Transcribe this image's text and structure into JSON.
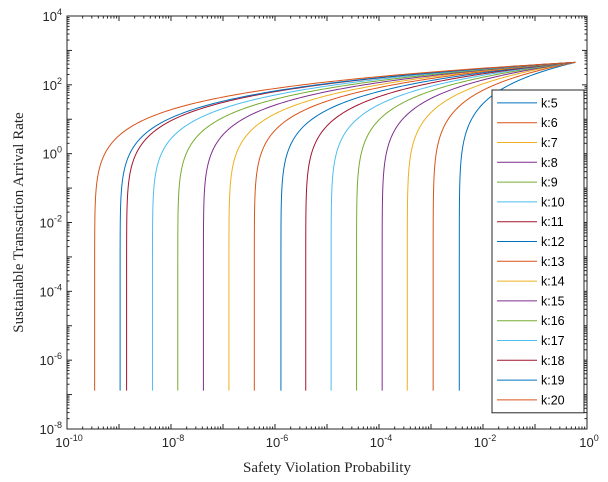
{
  "chart_data": {
    "type": "line",
    "title": "",
    "xlabel": "Safety Violation Probability",
    "ylabel": "Sustainable Transaction Arrival Rate",
    "xscale": "log",
    "yscale": "log",
    "xlim": [
      1e-10,
      1
    ],
    "ylim": [
      1e-08,
      10000
    ],
    "grid": false,
    "legend_placement": "right",
    "x_ticks": [
      {
        "base": "10",
        "exp": "-10",
        "value": 1e-10
      },
      {
        "base": "10",
        "exp": "-8",
        "value": 1e-08
      },
      {
        "base": "10",
        "exp": "-6",
        "value": 1e-06
      },
      {
        "base": "10",
        "exp": "-4",
        "value": 0.0001
      },
      {
        "base": "10",
        "exp": "-2",
        "value": 0.01
      },
      {
        "base": "10",
        "exp": "0",
        "value": 1
      }
    ],
    "y_ticks": [
      {
        "base": "10",
        "exp": "-8",
        "value": 1e-08
      },
      {
        "base": "10",
        "exp": "-6",
        "value": 1e-06
      },
      {
        "base": "10",
        "exp": "-4",
        "value": 0.0001
      },
      {
        "base": "10",
        "exp": "-2",
        "value": 0.01
      },
      {
        "base": "10",
        "exp": "0",
        "value": 1
      },
      {
        "base": "10",
        "exp": "2",
        "value": 100
      },
      {
        "base": "10",
        "exp": "4",
        "value": 10000
      }
    ],
    "curve_shape": {
      "y_min": 1.3e-07,
      "y_max": 450,
      "x_at_y_max": 0.6
    },
    "series": [
      {
        "name": "k:5",
        "color": "#0072BD",
        "x_vertical": 0.0035
      },
      {
        "name": "k:6",
        "color": "#D95319",
        "x_vertical": 0.0011
      },
      {
        "name": "k:7",
        "color": "#EDB120",
        "x_vertical": 0.00035
      },
      {
        "name": "k:8",
        "color": "#7E2F8E",
        "x_vertical": 0.000115
      },
      {
        "name": "k:9",
        "color": "#77AC30",
        "x_vertical": 3.7e-05
      },
      {
        "name": "k:10",
        "color": "#4DBEEE",
        "x_vertical": 1.2e-05
      },
      {
        "name": "k:11",
        "color": "#A2142F",
        "x_vertical": 3.9e-06
      },
      {
        "name": "k:12",
        "color": "#0072BD",
        "x_vertical": 1.3e-06
      },
      {
        "name": "k:13",
        "color": "#D95319",
        "x_vertical": 4e-07
      },
      {
        "name": "k:14",
        "color": "#EDB120",
        "x_vertical": 1.3e-07
      },
      {
        "name": "k:15",
        "color": "#7E2F8E",
        "x_vertical": 4.2e-08
      },
      {
        "name": "k:16",
        "color": "#77AC30",
        "x_vertical": 1.35e-08
      },
      {
        "name": "k:17",
        "color": "#4DBEEE",
        "x_vertical": 4.4e-09
      },
      {
        "name": "k:18",
        "color": "#A2142F",
        "x_vertical": 1.4e-09
      },
      {
        "name": "k:19",
        "color": "#0072BD",
        "x_vertical": 1.05e-09
      },
      {
        "name": "k:20",
        "color": "#D95319",
        "x_vertical": 3.4e-10
      }
    ]
  }
}
